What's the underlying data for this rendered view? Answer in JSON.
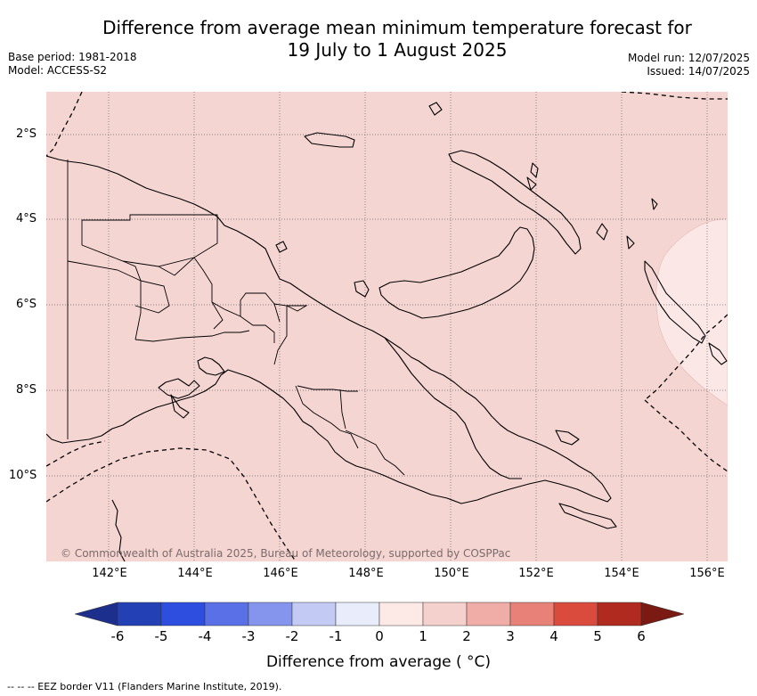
{
  "header": {
    "title_line1": "Difference from average mean minimum temperature forecast for",
    "title_line2": "19 July to 1 August 2025",
    "base_period": "Base period: 1981-2018",
    "model": "Model: ACCESS-S2",
    "model_run": "Model run: 12/07/2025",
    "issued": "Issued: 14/07/2025"
  },
  "map": {
    "background_color": "#f4d5d2",
    "warm_zone_color": "#fbe8e6",
    "lat_labels": [
      "2°S",
      "4°S",
      "6°S",
      "8°S",
      "10°S"
    ],
    "lon_labels": [
      "142°E",
      "144°E",
      "146°E",
      "148°E",
      "150°E",
      "152°E",
      "154°E",
      "156°E"
    ],
    "copyright": "© Commonwealth of Australia 2025, Bureau of Meteorology, supported by COSPPac"
  },
  "colorbar": {
    "ticks": [
      "-6",
      "-5",
      "-4",
      "-3",
      "-2",
      "-1",
      "0",
      "1",
      "2",
      "3",
      "4",
      "5",
      "6"
    ],
    "colors": [
      "#1d2f8c",
      "#2440b5",
      "#2e4ee0",
      "#5a70e6",
      "#8595ee",
      "#c3caf4",
      "#e8ecfb",
      "#fde9e6",
      "#f4d1cd",
      "#f0aca6",
      "#e88278",
      "#da4a3d",
      "#b02a20",
      "#7a1a12"
    ],
    "label": "Difference from average ( °C)"
  },
  "footnote": "--  --  -- EEZ border V11 (Flanders Marine Institute, 2019)."
}
